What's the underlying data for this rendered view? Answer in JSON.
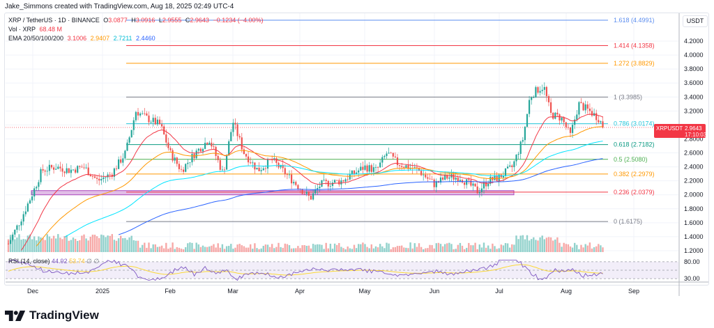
{
  "credit": "Jake_Simmons created with TradingView.com, Aug 18, 2025 02:49 UTC-4",
  "legend": {
    "symbol": "XRP / TetherUS · 1D · BINANCE",
    "o_label": "O",
    "o": "3.0877",
    "h_label": "H",
    "h": "3.0916",
    "l_label": "L",
    "l": "2.9555",
    "c_label": "C",
    "c": "2.9643",
    "change": "−0.1234 (−4.00%)",
    "vol_label": "Vol · XRP",
    "vol": "68.48 M",
    "ema_label": "EMA 20/50/100/200",
    "ema20": "3.1006",
    "ema50": "2.9407",
    "ema100": "2.7211",
    "ema200": "2.4460"
  },
  "rsi_legend": {
    "label": "RSI (14, close)",
    "rsi": "44.92",
    "ma": "53.74",
    "n1": "∅",
    "n2": "∅"
  },
  "axis": {
    "currency": "USDT",
    "price_tag": {
      "symbol": "XRPUSDT",
      "price": "2.9643",
      "countdown": "17:10:03"
    }
  },
  "logo": {
    "text": "TradingView"
  },
  "colors": {
    "up": "#26a69a",
    "down": "#ef5350",
    "ema20": "#f23645",
    "ema50": "#ff9800",
    "ema100": "#00e5ff",
    "ema200": "#2962ff",
    "rsi": "#7e57c2",
    "rsi_ma": "#fbd834"
  },
  "chart_data": {
    "type": "candlestick",
    "title": "XRP / TetherUS · 1D · BINANCE",
    "xlabel": "",
    "ylabel": "USDT",
    "ylim": [
      1.1,
      4.6
    ],
    "x_ticks": [
      "Dec",
      "2025",
      "Feb",
      "Mar",
      "Apr",
      "May",
      "Jun",
      "Jul",
      "Aug",
      "Sep"
    ],
    "y_ticks": [
      1.2,
      1.4,
      1.6,
      1.8,
      2.0,
      2.2,
      2.4,
      2.6,
      2.8,
      3.0,
      3.2,
      3.4,
      3.6,
      3.8,
      4.0,
      4.2
    ],
    "ohlc_last": {
      "open": 3.0877,
      "high": 3.0916,
      "low": 2.9555,
      "close": 2.9643,
      "change": -0.1234,
      "change_pct": -4.0
    },
    "price_path": {
      "months": [
        "Nov-late",
        "Dec",
        "Jan",
        "Feb",
        "Mar",
        "Apr",
        "May",
        "Jun",
        "Jul",
        "Aug",
        "Aug-18"
      ],
      "approx_close": [
        1.4,
        2.3,
        3.1,
        2.7,
        2.2,
        2.1,
        2.4,
        2.15,
        2.45,
        3.05,
        2.96
      ]
    },
    "fib_levels": [
      {
        "ratio": "1.618",
        "price": 4.4991,
        "color": "#5b8def"
      },
      {
        "ratio": "1.414",
        "price": 4.1358,
        "color": "#f23645"
      },
      {
        "ratio": "1.272",
        "price": 3.8829,
        "color": "#ff9800"
      },
      {
        "ratio": "1",
        "price": 3.3985,
        "color": "#787b86"
      },
      {
        "ratio": "0.786",
        "price": 3.0174,
        "color": "#26c6da"
      },
      {
        "ratio": "0.618",
        "price": 2.7182,
        "color": "#089981"
      },
      {
        "ratio": "0.5",
        "price": 2.508,
        "color": "#4caf50"
      },
      {
        "ratio": "0.382",
        "price": 2.2979,
        "color": "#ff9800"
      },
      {
        "ratio": "0.236",
        "price": 2.0379,
        "color": "#f23645"
      },
      {
        "ratio": "0",
        "price": 1.6175,
        "color": "#787b86"
      }
    ],
    "ema": {
      "ema20": 3.1006,
      "ema50": 2.9407,
      "ema100": 2.7211,
      "ema200": 2.446
    },
    "volume_last": "68.48 M",
    "rsi": {
      "period": 14,
      "value": 44.92,
      "ma": 53.74,
      "upper": 80,
      "lower": 30,
      "axis_ticks": [
        80.0,
        30.0
      ]
    },
    "support_zone": {
      "low": 2.0,
      "high": 2.06,
      "color": "#ce93d8"
    }
  }
}
